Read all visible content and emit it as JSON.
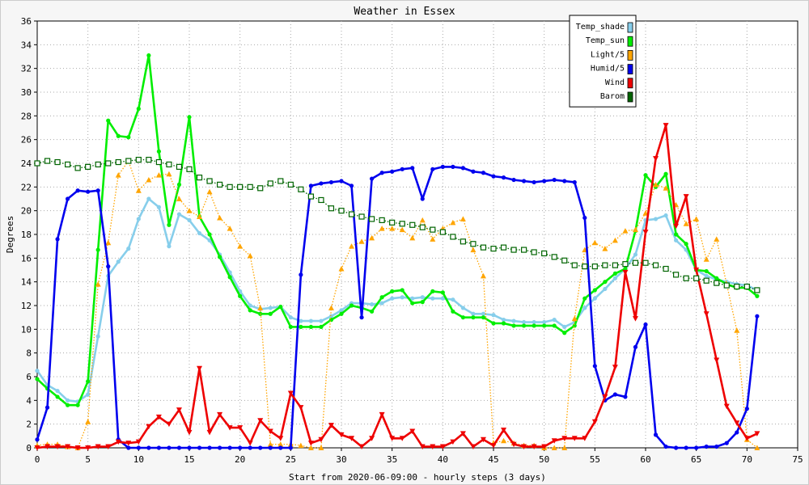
{
  "chart_data": {
    "type": "line",
    "title": "Weather in Essex",
    "xlabel": "Start from 2020-06-09:00 - hourly steps (3 days)",
    "ylabel": "Degrees",
    "xlim": [
      0,
      75
    ],
    "ylim": [
      0,
      36
    ],
    "xticks": [
      0,
      5,
      10,
      15,
      20,
      25,
      30,
      35,
      40,
      45,
      50,
      55,
      60,
      65,
      70,
      75
    ],
    "yticks": [
      0,
      2,
      4,
      6,
      8,
      10,
      12,
      14,
      16,
      18,
      20,
      22,
      24,
      26,
      28,
      30,
      32,
      34,
      36
    ],
    "grid": true,
    "legend_position": "top-right",
    "series": [
      {
        "name": "Temp_shade",
        "color": "#87ceeb",
        "marker": "circle",
        "dash": "solid",
        "values": [
          6.5,
          5.3,
          4.8,
          4.0,
          3.9,
          4.5,
          9.4,
          14.5,
          15.7,
          16.8,
          19.3,
          21.0,
          20.3,
          17.0,
          19.7,
          19.2,
          18.1,
          17.5,
          16.3,
          14.8,
          13.2,
          12.0,
          11.7,
          11.8,
          11.9,
          11.0,
          10.7,
          10.7,
          10.7,
          11.1,
          11.6,
          12.2,
          12.2,
          12.1,
          12.2,
          12.6,
          12.7,
          12.6,
          12.7,
          12.6,
          12.6,
          12.5,
          11.8,
          11.3,
          11.3,
          11.2,
          10.8,
          10.7,
          10.6,
          10.6,
          10.6,
          10.8,
          10.2,
          10.6,
          11.8,
          12.6,
          13.4,
          14.3,
          15.1,
          16.3,
          19.2,
          19.3,
          19.6,
          17.5,
          16.7,
          15.0,
          14.5,
          14.2,
          14.0,
          13.8,
          13.7,
          13.3
        ]
      },
      {
        "name": "Temp_sun",
        "color": "#00ee00",
        "marker": "circle",
        "dash": "solid",
        "values": [
          5.8,
          5.0,
          4.3,
          3.6,
          3.6,
          5.6,
          16.7,
          27.6,
          26.3,
          26.2,
          28.6,
          33.1,
          25.0,
          18.8,
          22.2,
          27.9,
          19.5,
          18.0,
          16.1,
          14.4,
          12.8,
          11.6,
          11.3,
          11.3,
          11.9,
          10.2,
          10.2,
          10.2,
          10.2,
          10.8,
          11.3,
          12.0,
          11.8,
          11.5,
          12.7,
          13.2,
          13.3,
          12.2,
          12.3,
          13.2,
          13.1,
          11.5,
          11.0,
          11.0,
          11.0,
          10.5,
          10.5,
          10.3,
          10.3,
          10.3,
          10.3,
          10.3,
          9.7,
          10.3,
          12.6,
          13.3,
          14.0,
          14.7,
          15.1,
          18.3,
          23.0,
          22.0,
          23.1,
          18.0,
          17.2,
          15.0,
          14.9,
          14.3,
          13.8,
          13.5,
          13.5,
          12.8
        ]
      },
      {
        "name": "Light/5",
        "color": "#ffa500",
        "marker": "triangle-up",
        "dash": "dotted",
        "values": [
          0.2,
          0.3,
          0.3,
          0.1,
          0.0,
          2.2,
          13.8,
          17.3,
          23.0,
          24.2,
          21.7,
          22.6,
          23.0,
          23.1,
          21.0,
          20.0,
          19.5,
          21.6,
          19.4,
          18.5,
          17.0,
          16.2,
          11.8,
          0.3,
          0.3,
          0.3,
          0.2,
          0.0,
          0.0,
          11.8,
          15.1,
          17.0,
          17.4,
          17.7,
          18.5,
          18.5,
          18.4,
          17.7,
          19.2,
          17.6,
          18.5,
          19.0,
          19.3,
          16.7,
          14.5,
          0.4,
          0.6,
          0.4,
          0.2,
          0.2,
          0.0,
          0.0,
          0.0,
          10.9,
          16.7,
          17.3,
          16.8,
          17.5,
          18.3,
          18.4,
          19.8,
          22.2,
          21.9,
          20.5,
          18.9,
          19.3,
          15.9,
          17.6,
          13.8,
          9.9,
          0.7,
          0.0
        ]
      },
      {
        "name": "Humid/5",
        "color": "#0000ee",
        "marker": "circle",
        "dash": "solid",
        "values": [
          0.7,
          3.4,
          17.6,
          21.0,
          21.7,
          21.6,
          21.7,
          15.3,
          0.7,
          0.0,
          0.0,
          0.0,
          0.0,
          0.0,
          0.0,
          0.0,
          0.0,
          0.0,
          0.0,
          0.0,
          0.0,
          0.0,
          0.0,
          0.0,
          0.0,
          0.0,
          14.6,
          22.1,
          22.3,
          22.4,
          22.5,
          22.1,
          11.0,
          22.7,
          23.2,
          23.3,
          23.5,
          23.6,
          21.0,
          23.5,
          23.7,
          23.7,
          23.6,
          23.3,
          23.2,
          22.9,
          22.8,
          22.6,
          22.5,
          22.4,
          22.5,
          22.6,
          22.5,
          22.4,
          19.4,
          6.9,
          4.0,
          4.5,
          4.3,
          8.5,
          10.4,
          1.1,
          0.1,
          0.0,
          0.0,
          0.0,
          0.1,
          0.1,
          0.4,
          1.3,
          3.3,
          11.1
        ]
      },
      {
        "name": "Wind",
        "color": "#ee0000",
        "marker": "triangle-down",
        "dash": "solid",
        "values": [
          0.0,
          0.1,
          0.1,
          0.1,
          0.0,
          0.0,
          0.1,
          0.1,
          0.5,
          0.4,
          0.5,
          1.8,
          2.6,
          2.0,
          3.2,
          1.3,
          6.7,
          1.3,
          2.8,
          1.7,
          1.7,
          0.4,
          2.3,
          1.4,
          0.8,
          4.6,
          3.4,
          0.4,
          0.7,
          1.9,
          1.1,
          0.8,
          0.1,
          0.8,
          2.8,
          0.8,
          0.8,
          1.4,
          0.1,
          0.1,
          0.1,
          0.5,
          1.2,
          0.1,
          0.7,
          0.2,
          1.5,
          0.3,
          0.1,
          0.1,
          0.1,
          0.6,
          0.8,
          0.8,
          0.8,
          2.2,
          4.3,
          6.8,
          14.8,
          10.9,
          18.2,
          24.4,
          27.2,
          18.7,
          21.2,
          15.0,
          11.3,
          7.4,
          3.5,
          2.1,
          0.8,
          1.2
        ]
      },
      {
        "name": "Barom",
        "color": "#006400",
        "marker": "square-open",
        "dash": "dotted",
        "values": [
          24.0,
          24.2,
          24.1,
          23.9,
          23.6,
          23.7,
          23.9,
          24.0,
          24.1,
          24.2,
          24.3,
          24.3,
          24.1,
          23.9,
          23.7,
          23.5,
          22.8,
          22.5,
          22.2,
          22.0,
          22.0,
          22.0,
          21.9,
          22.3,
          22.5,
          22.2,
          21.8,
          21.2,
          20.9,
          20.2,
          20.0,
          19.7,
          19.5,
          19.3,
          19.2,
          19.0,
          18.9,
          18.8,
          18.6,
          18.4,
          18.2,
          17.8,
          17.4,
          17.2,
          16.9,
          16.8,
          16.9,
          16.7,
          16.7,
          16.5,
          16.4,
          16.1,
          15.8,
          15.4,
          15.3,
          15.3,
          15.4,
          15.4,
          15.5,
          15.6,
          15.6,
          15.4,
          15.1,
          14.6,
          14.3,
          14.3,
          14.1,
          13.9,
          13.7,
          13.6,
          13.6,
          13.3
        ]
      }
    ]
  }
}
